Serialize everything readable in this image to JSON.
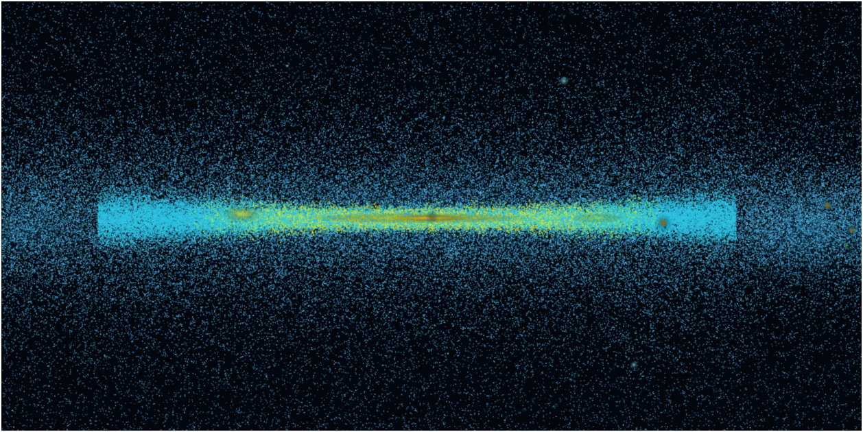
{
  "image": {
    "kind": "all-sky false-color map",
    "colors": {
      "background": "#03060d",
      "frame": "#ffffff",
      "sparse_point": "#4aa8e0",
      "band_low": "#2fc6e6",
      "band_mid": "#9af05a",
      "band_high": "#f2e21e",
      "core": "#ff3a1a"
    }
  }
}
